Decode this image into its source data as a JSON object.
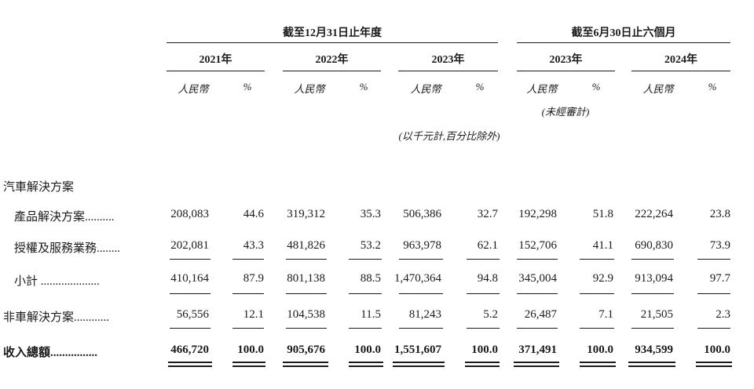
{
  "group_headers": [
    "截至12月31日止年度",
    "截至6月30日止六個月"
  ],
  "years": [
    "2021年",
    "2022年",
    "2023年",
    "2023年",
    "2024年"
  ],
  "sub_rmb": "人民幣",
  "sub_pct": "%",
  "unaudited": "(未經審計)",
  "unit_note": "(以千元計,百分比除外)",
  "section_title": "汽車解決方案",
  "rows": [
    {
      "label": "產品解決方案..........",
      "values": [
        "208,083",
        "44.6",
        "319,312",
        "35.3",
        "506,386",
        "32.7",
        "192,298",
        "51.8",
        "222,264",
        "23.8"
      ]
    },
    {
      "label": "授權及服務業務........",
      "values": [
        "202,081",
        "43.3",
        "481,826",
        "53.2",
        "963,978",
        "62.1",
        "152,706",
        "41.1",
        "690,830",
        "73.9"
      ]
    },
    {
      "label": "小計 ....................",
      "values": [
        "410,164",
        "87.9",
        "801,138",
        "88.5",
        "1,470,364",
        "94.8",
        "345,004",
        "92.9",
        "913,094",
        "97.7"
      ]
    },
    {
      "label": "非車解決方案............",
      "values": [
        "56,556",
        "12.1",
        "104,538",
        "11.5",
        "81,243",
        "5.2",
        "26,487",
        "7.1",
        "21,505",
        "2.3"
      ]
    },
    {
      "label": "收入總額................",
      "values": [
        "466,720",
        "100.0",
        "905,676",
        "100.0",
        "1,551,607",
        "100.0",
        "371,491",
        "100.0",
        "934,599",
        "100.0"
      ]
    }
  ]
}
